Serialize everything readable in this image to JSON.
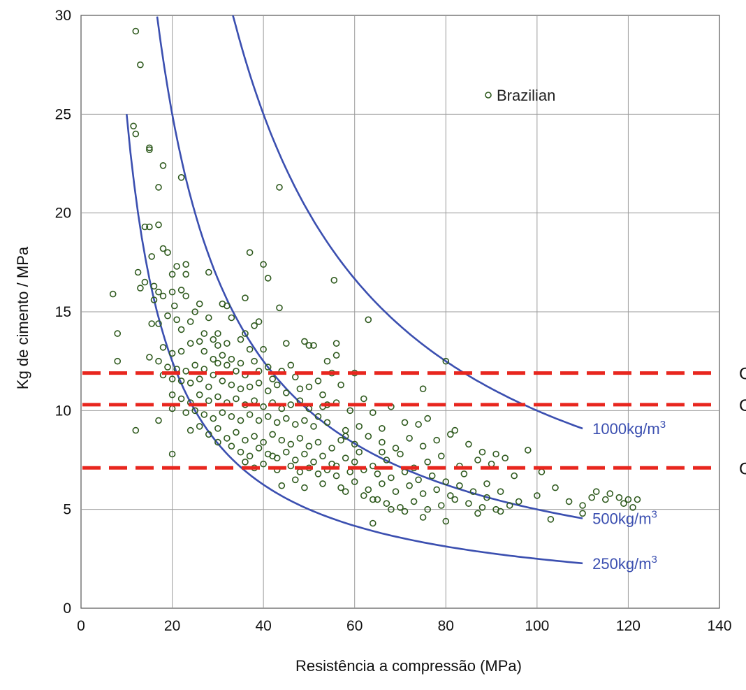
{
  "chart_data": {
    "type": "scatter",
    "title": "",
    "xlabel": "Resistência a compressão (MPa)",
    "ylabel": "Kg de cimento / MPa",
    "xlim": [
      0,
      140
    ],
    "ylim": [
      0,
      30
    ],
    "x_ticks": [
      "0",
      "20",
      "40",
      "60",
      "80",
      "100",
      "120",
      "140"
    ],
    "y_ticks": [
      "0",
      "5",
      "10",
      "15",
      "20",
      "25",
      "30"
    ],
    "grid": true,
    "legend": {
      "position": "top-right",
      "entries": [
        "Brazilian"
      ]
    },
    "colors": {
      "points": "#2f5a1e",
      "curves": "#3b4fb0",
      "cutoffs": "#e8261e",
      "grid": "#9a9a9a"
    },
    "series": [
      {
        "name": "Brazilian",
        "kind": "scatter",
        "points": [
          [
            12,
            29.2
          ],
          [
            13,
            27.5
          ],
          [
            11.5,
            24.4
          ],
          [
            12,
            24
          ],
          [
            15,
            23.3
          ],
          [
            15,
            23.2
          ],
          [
            18,
            22.4
          ],
          [
            22,
            21.8
          ],
          [
            17,
            21.3
          ],
          [
            43.5,
            21.3
          ],
          [
            14,
            19.3
          ],
          [
            15,
            19.3
          ],
          [
            17,
            19.4
          ],
          [
            18,
            18.2
          ],
          [
            19,
            18
          ],
          [
            37,
            18
          ],
          [
            15.5,
            17.8
          ],
          [
            23,
            17.4
          ],
          [
            21,
            17.3
          ],
          [
            28,
            17
          ],
          [
            40,
            17.4
          ],
          [
            12.5,
            17
          ],
          [
            20,
            16.9
          ],
          [
            23,
            16.9
          ],
          [
            41,
            16.7
          ],
          [
            55.5,
            16.6
          ],
          [
            13,
            16.2
          ],
          [
            14,
            16.5
          ],
          [
            16,
            16.3
          ],
          [
            17,
            16
          ],
          [
            20,
            16
          ],
          [
            22,
            16.1
          ],
          [
            23,
            15.8
          ],
          [
            16,
            15.6
          ],
          [
            18,
            15.8
          ],
          [
            20.5,
            15.3
          ],
          [
            26,
            15.4
          ],
          [
            31,
            15.4
          ],
          [
            32,
            15.3
          ],
          [
            36,
            15.7
          ],
          [
            7,
            15.9
          ],
          [
            43.5,
            15.2
          ],
          [
            25,
            15
          ],
          [
            19,
            14.8
          ],
          [
            21,
            14.6
          ],
          [
            24,
            14.5
          ],
          [
            28,
            14.7
          ],
          [
            33,
            14.7
          ],
          [
            38,
            14.3
          ],
          [
            39,
            14.5
          ],
          [
            63,
            14.6
          ],
          [
            17,
            14.4
          ],
          [
            15.5,
            14.4
          ],
          [
            22,
            14.1
          ],
          [
            27,
            13.9
          ],
          [
            29,
            13.6
          ],
          [
            30,
            13.9
          ],
          [
            36,
            13.9
          ],
          [
            8,
            13.9
          ],
          [
            24,
            13.4
          ],
          [
            26,
            13.5
          ],
          [
            30,
            13.3
          ],
          [
            32,
            13.4
          ],
          [
            35,
            13.6
          ],
          [
            37,
            13.1
          ],
          [
            40,
            13.1
          ],
          [
            45,
            13.4
          ],
          [
            49,
            13.5
          ],
          [
            50,
            13.3
          ],
          [
            51,
            13.3
          ],
          [
            56,
            13.4
          ],
          [
            18,
            13.2
          ],
          [
            20,
            12.9
          ],
          [
            22,
            13
          ],
          [
            27,
            13
          ],
          [
            29,
            12.6
          ],
          [
            31,
            12.8
          ],
          [
            33,
            12.6
          ],
          [
            35,
            12.4
          ],
          [
            38,
            12.5
          ],
          [
            41,
            12.2
          ],
          [
            46,
            12.3
          ],
          [
            54,
            12.5
          ],
          [
            56,
            12.8
          ],
          [
            15,
            12.7
          ],
          [
            17,
            12.5
          ],
          [
            19,
            12.2
          ],
          [
            21,
            12.1
          ],
          [
            23,
            12
          ],
          [
            25,
            12.3
          ],
          [
            27,
            12.1
          ],
          [
            30,
            12.4
          ],
          [
            32,
            12.3
          ],
          [
            34,
            12
          ],
          [
            36,
            11.8
          ],
          [
            39,
            12
          ],
          [
            42,
            11.6
          ],
          [
            44,
            12
          ],
          [
            47,
            11.7
          ],
          [
            52,
            11.5
          ],
          [
            55,
            11.9
          ],
          [
            60,
            11.9
          ],
          [
            8,
            12.5
          ],
          [
            18,
            11.8
          ],
          [
            20,
            11.6
          ],
          [
            22,
            11.5
          ],
          [
            24,
            11.4
          ],
          [
            26,
            11.6
          ],
          [
            28,
            11.2
          ],
          [
            29,
            11.8
          ],
          [
            31,
            11.5
          ],
          [
            33,
            11.3
          ],
          [
            35,
            11.1
          ],
          [
            37,
            11.2
          ],
          [
            39,
            11.4
          ],
          [
            41,
            11
          ],
          [
            43,
            11.3
          ],
          [
            45,
            10.9
          ],
          [
            48,
            11.1
          ],
          [
            50,
            11.2
          ],
          [
            53,
            10.8
          ],
          [
            57,
            11.3
          ],
          [
            62,
            10.6
          ],
          [
            75,
            11.1
          ],
          [
            80,
            12.5
          ],
          [
            20,
            10.8
          ],
          [
            22,
            10.6
          ],
          [
            24,
            10.4
          ],
          [
            26,
            10.8
          ],
          [
            28,
            10.5
          ],
          [
            30,
            10.7
          ],
          [
            32,
            10.4
          ],
          [
            34,
            10.6
          ],
          [
            36,
            10.3
          ],
          [
            38,
            10.5
          ],
          [
            40,
            10.2
          ],
          [
            42,
            10.4
          ],
          [
            44,
            10.1
          ],
          [
            46,
            10.3
          ],
          [
            48,
            10.5
          ],
          [
            50,
            10.1
          ],
          [
            53,
            10.2
          ],
          [
            56,
            10.4
          ],
          [
            59,
            10
          ],
          [
            64,
            9.9
          ],
          [
            68,
            10.2
          ],
          [
            20,
            10.1
          ],
          [
            23,
            9.9
          ],
          [
            25,
            10
          ],
          [
            27,
            9.8
          ],
          [
            29,
            9.6
          ],
          [
            31,
            9.9
          ],
          [
            33,
            9.7
          ],
          [
            35,
            9.5
          ],
          [
            37,
            9.8
          ],
          [
            39,
            9.5
          ],
          [
            41,
            9.7
          ],
          [
            43,
            9.4
          ],
          [
            45,
            9.6
          ],
          [
            47,
            9.3
          ],
          [
            49,
            9.5
          ],
          [
            51,
            9.2
          ],
          [
            54,
            9.4
          ],
          [
            58,
            9
          ],
          [
            61,
            9.2
          ],
          [
            66,
            9.1
          ],
          [
            71,
            9.4
          ],
          [
            74,
            9.3
          ],
          [
            76,
            9.6
          ],
          [
            82,
            9
          ],
          [
            17,
            9.5
          ],
          [
            12,
            9
          ],
          [
            24,
            9
          ],
          [
            26,
            9.2
          ],
          [
            28,
            8.8
          ],
          [
            30,
            9.1
          ],
          [
            32,
            8.6
          ],
          [
            34,
            8.9
          ],
          [
            36,
            8.5
          ],
          [
            38,
            8.7
          ],
          [
            40,
            8.4
          ],
          [
            42,
            8.8
          ],
          [
            44,
            8.5
          ],
          [
            46,
            8.3
          ],
          [
            48,
            8.6
          ],
          [
            50,
            8.2
          ],
          [
            52,
            8.4
          ],
          [
            55,
            8.1
          ],
          [
            57,
            8.5
          ],
          [
            60,
            8.3
          ],
          [
            63,
            8.7
          ],
          [
            66,
            8.4
          ],
          [
            69,
            8.1
          ],
          [
            72,
            8.6
          ],
          [
            75,
            8.2
          ],
          [
            78,
            8.5
          ],
          [
            81,
            8.8
          ],
          [
            85,
            8.3
          ],
          [
            88,
            7.9
          ],
          [
            91,
            7.8
          ],
          [
            98,
            8
          ],
          [
            30,
            8.4
          ],
          [
            33,
            8.2
          ],
          [
            35,
            7.9
          ],
          [
            37,
            7.7
          ],
          [
            39,
            8.1
          ],
          [
            41,
            7.8
          ],
          [
            43,
            7.6
          ],
          [
            45,
            7.9
          ],
          [
            47,
            7.5
          ],
          [
            49,
            7.8
          ],
          [
            51,
            7.4
          ],
          [
            53,
            7.7
          ],
          [
            55,
            7.3
          ],
          [
            58,
            7.6
          ],
          [
            61,
            7.9
          ],
          [
            64,
            7.2
          ],
          [
            67,
            7.5
          ],
          [
            70,
            7.8
          ],
          [
            73,
            7.1
          ],
          [
            76,
            7.4
          ],
          [
            79,
            7.7
          ],
          [
            83,
            7.2
          ],
          [
            87,
            7.5
          ],
          [
            90,
            7.3
          ],
          [
            93,
            7.6
          ],
          [
            20,
            7.8
          ],
          [
            36,
            7.4
          ],
          [
            38,
            7.1
          ],
          [
            40,
            7.3
          ],
          [
            43,
            7
          ],
          [
            46,
            7.2
          ],
          [
            48,
            6.9
          ],
          [
            50,
            7.1
          ],
          [
            52,
            6.8
          ],
          [
            54,
            7
          ],
          [
            56,
            6.7
          ],
          [
            59,
            6.9
          ],
          [
            62,
            7
          ],
          [
            65,
            6.8
          ],
          [
            68,
            6.6
          ],
          [
            71,
            6.9
          ],
          [
            74,
            6.5
          ],
          [
            77,
            6.7
          ],
          [
            80,
            6.4
          ],
          [
            84,
            6.8
          ],
          [
            89,
            6.3
          ],
          [
            95,
            6.7
          ],
          [
            101,
            6.9
          ],
          [
            104,
            6.1
          ],
          [
            47,
            6.5
          ],
          [
            53,
            6.3
          ],
          [
            57,
            6.1
          ],
          [
            60,
            6.4
          ],
          [
            63,
            6
          ],
          [
            66,
            6.3
          ],
          [
            69,
            5.9
          ],
          [
            72,
            6.2
          ],
          [
            75,
            5.8
          ],
          [
            78,
            6
          ],
          [
            81,
            5.7
          ],
          [
            83,
            6.2
          ],
          [
            86,
            5.9
          ],
          [
            89,
            5.6
          ],
          [
            92,
            5.9
          ],
          [
            96,
            5.4
          ],
          [
            100,
            5.7
          ],
          [
            49,
            6.1
          ],
          [
            58,
            5.9
          ],
          [
            62,
            5.7
          ],
          [
            64,
            5.5
          ],
          [
            67,
            5.3
          ],
          [
            70,
            5.1
          ],
          [
            73,
            5.4
          ],
          [
            76,
            5
          ],
          [
            79,
            5.2
          ],
          [
            82,
            5.5
          ],
          [
            85,
            5.3
          ],
          [
            88,
            5.1
          ],
          [
            91,
            5
          ],
          [
            94,
            5.2
          ],
          [
            107,
            5.4
          ],
          [
            110,
            5.2
          ],
          [
            112,
            5.6
          ],
          [
            113,
            5.9
          ],
          [
            115,
            5.5
          ],
          [
            116,
            5.8
          ],
          [
            118,
            5.6
          ],
          [
            119,
            5.3
          ],
          [
            120,
            5.5
          ],
          [
            121,
            5.1
          ],
          [
            122,
            5.5
          ],
          [
            65,
            5.5
          ],
          [
            68,
            5
          ],
          [
            71,
            4.9
          ],
          [
            75,
            4.6
          ],
          [
            80,
            4.4
          ],
          [
            87,
            4.8
          ],
          [
            92,
            4.9
          ],
          [
            103,
            4.5
          ],
          [
            110,
            4.8
          ],
          [
            64,
            4.3
          ],
          [
            56,
            7.2
          ],
          [
            44,
            6.2
          ],
          [
            42,
            7.7
          ],
          [
            52,
            9.7
          ],
          [
            54,
            10.3
          ],
          [
            58,
            8.7
          ],
          [
            60,
            7.4
          ],
          [
            66,
            7.9
          ]
        ]
      },
      {
        "name": "",
        "kind": "curve",
        "label": "1000kg/m3",
        "base": "1000kg/m",
        "sup": "3",
        "k": 1000,
        "x_start": 33.3,
        "x_end": 110
      },
      {
        "name": "",
        "kind": "curve",
        "label": "500kg/m3",
        "base": "500kg/m",
        "sup": "3",
        "k": 500,
        "x_start": 16.7,
        "x_end": 110
      },
      {
        "name": "",
        "kind": "curve",
        "label": "250kg/m3",
        "base": "250kg/m",
        "sup": "3",
        "k": 250,
        "x_start": 10,
        "x_end": 110
      }
    ],
    "reference_lines": [
      {
        "y": 11.9,
        "label": "C"
      },
      {
        "y": 10.3,
        "label": "C"
      },
      {
        "y": 7.1,
        "label": "C"
      }
    ]
  }
}
